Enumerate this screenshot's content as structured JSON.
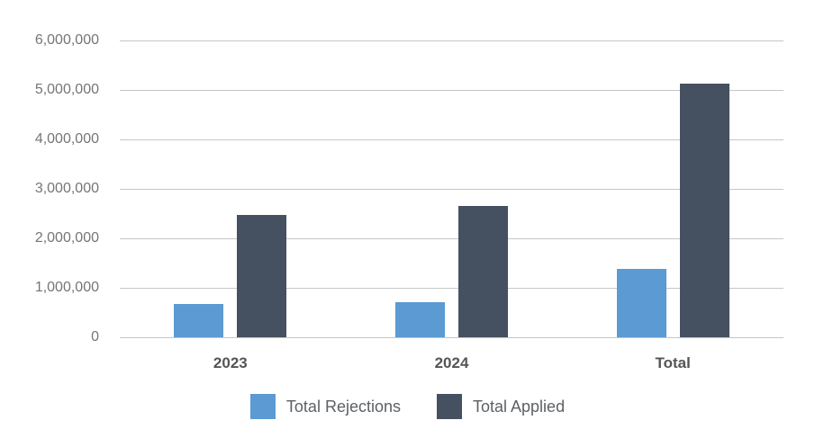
{
  "chart_data": {
    "type": "bar",
    "title": "",
    "xlabel": "",
    "ylabel": "",
    "categories": [
      "2023",
      "2024",
      "Total"
    ],
    "series": [
      {
        "name": "Total Rejections",
        "color": "#5B9AD2",
        "values": [
          670000,
          710000,
          1380000
        ]
      },
      {
        "name": "Total Applied",
        "color": "#455160",
        "values": [
          2480000,
          2650000,
          5130000
        ]
      }
    ],
    "ylim": [
      0,
      6000000
    ],
    "ytick_interval": 1000000,
    "ytick_labels": [
      "0",
      "1,000,000",
      "2,000,000",
      "3,000,000",
      "4,000,000",
      "5,000,000",
      "6,000,000"
    ],
    "grid": true,
    "legend_position": "bottom"
  },
  "colors": {
    "background": "#ffffff",
    "grid_line": "#c6c6c6",
    "y_tick_text": "#757575",
    "x_tick_text": "#555555",
    "legend_text": "#5c6166",
    "series_blue": "#5B9AD2",
    "series_dark": "#455160"
  }
}
